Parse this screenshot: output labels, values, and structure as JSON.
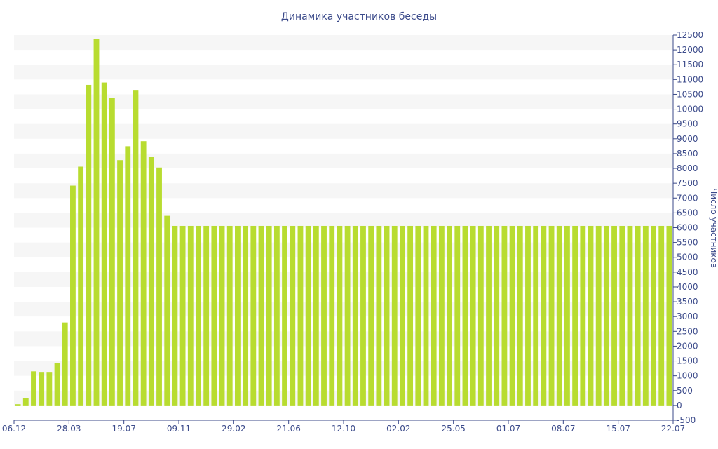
{
  "colors": {
    "bar": "#b8dc30",
    "axis": "#3b4a8a",
    "band": "#f6f6f6",
    "text": "#3b4a8a"
  },
  "chart_data": {
    "type": "bar",
    "title": "Динамика участников беседы",
    "xlabel": "",
    "ylabel": "Число участников",
    "ylim": [
      -500,
      12500
    ],
    "yticks": [
      -500,
      0,
      500,
      1000,
      1500,
      2000,
      2500,
      3000,
      3500,
      4000,
      4500,
      5000,
      5500,
      6000,
      6500,
      7000,
      7500,
      8000,
      8500,
      9000,
      9500,
      10000,
      10500,
      11000,
      11500,
      12000,
      12500
    ],
    "x_tick_labels": [
      "06.12",
      "28.03",
      "19.07",
      "09.11",
      "29.02",
      "21.06",
      "12.10",
      "02.02",
      "25.05",
      "01.07",
      "08.07",
      "15.07",
      "22.07"
    ],
    "grid": "alternating horizontal bands",
    "values": [
      40,
      240,
      1150,
      1130,
      1130,
      1420,
      2800,
      7420,
      8060,
      10820,
      12380,
      10900,
      10380,
      8280,
      8750,
      10650,
      8920,
      8380,
      8030,
      6400,
      6060,
      6060,
      6060,
      6060,
      6060,
      6060,
      6060,
      6060,
      6060,
      6060,
      6060,
      6060,
      6060,
      6060,
      6060,
      6060,
      6060,
      6060,
      6060,
      6060,
      6060,
      6060,
      6060,
      6060,
      6060,
      6060,
      6060,
      6060,
      6060,
      6060,
      6060,
      6060,
      6060,
      6060,
      6060,
      6060,
      6060,
      6060,
      6060,
      6060,
      6060,
      6060,
      6060,
      6060,
      6060,
      6060,
      6060,
      6060,
      6060,
      6060,
      6060,
      6060,
      6060,
      6060,
      6060,
      6060,
      6060,
      6060,
      6060,
      6060,
      6060,
      6060,
      6060,
      6060
    ]
  }
}
